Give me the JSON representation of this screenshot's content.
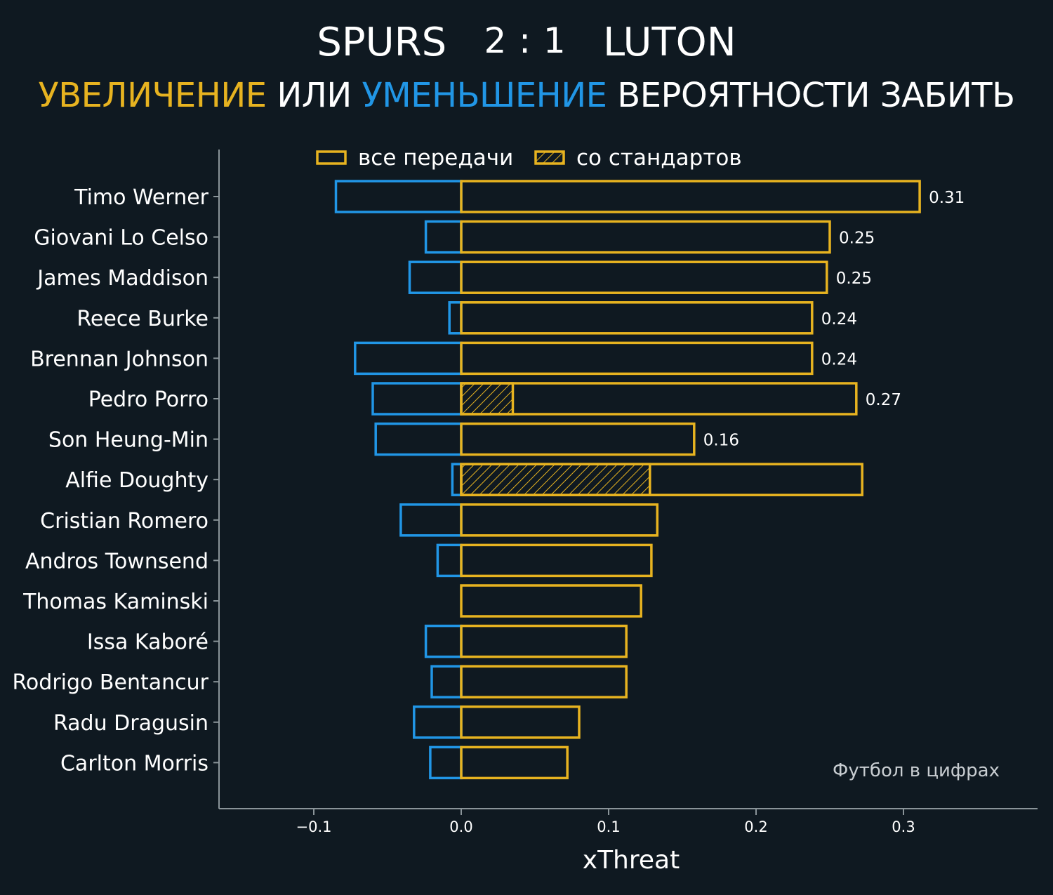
{
  "header": {
    "home_team": "SPURS",
    "home_score": "2",
    "score_sep": ":",
    "away_score": "1",
    "away_team": "LUTON",
    "subtitle_increase": "УВЕЛИЧЕНИЕ",
    "subtitle_or": "ИЛИ",
    "subtitle_decrease": "УМЕНЬШЕНИЕ",
    "subtitle_rest": "ВЕРОЯТНОСТИ ЗАБИТЬ"
  },
  "watermark": "Футбол в цифрах",
  "colors": {
    "background": "#0f1921",
    "positive": "#e7b320",
    "negative": "#2196e6",
    "text": "#ffffff",
    "axis": "#8a9499",
    "watermark": "#c8cdd1"
  },
  "chart_data": {
    "type": "bar",
    "orientation": "horizontal",
    "xlabel": "xThreat",
    "xlim": [
      -0.165,
      0.39
    ],
    "xticks": [
      -0.1,
      0.0,
      0.1,
      0.2,
      0.3
    ],
    "xtick_labels": [
      "−0.1",
      "0.0",
      "0.1",
      "0.2",
      "0.3"
    ],
    "legend": {
      "placement": "top",
      "items": [
        {
          "label": "все передачи",
          "style": "outline"
        },
        {
          "label": "со стандартов",
          "style": "hatched"
        }
      ]
    },
    "categories": [
      "Timo Werner",
      "Giovani Lo Celso",
      "James Maddison",
      "Reece Burke",
      "Brennan Johnson",
      "Pedro Porro",
      "Son Heung-Min",
      "Alfie Doughty",
      "Cristian Romero",
      "Andros Townsend",
      "Thomas Kaminski",
      "Issa Kaboré",
      "Rodrigo Bentancur",
      "Radu Dragusin",
      "Carlton Morris"
    ],
    "series": [
      {
        "name": "все передачи",
        "kind": "positive",
        "values": [
          0.311,
          0.25,
          0.248,
          0.238,
          0.238,
          0.268,
          0.158,
          0.272,
          0.133,
          0.129,
          0.122,
          0.112,
          0.112,
          0.08,
          0.072
        ]
      },
      {
        "name": "все передачи",
        "kind": "negative",
        "values": [
          -0.085,
          -0.024,
          -0.035,
          -0.008,
          -0.072,
          -0.06,
          -0.058,
          -0.006,
          -0.041,
          -0.016,
          0.0,
          -0.024,
          -0.02,
          -0.032,
          -0.021
        ]
      },
      {
        "name": "со стандартов",
        "kind": "set_piece",
        "values": [
          0,
          0,
          0,
          0,
          0,
          0.035,
          0,
          0.128,
          0,
          0,
          0,
          0,
          0,
          0,
          0
        ]
      }
    ],
    "data_labels": [
      "0.31",
      "0.25",
      "0.25",
      "0.24",
      "0.24",
      "0.27",
      "0.16",
      "",
      "",
      "",
      "",
      "",
      "",
      "",
      ""
    ]
  }
}
